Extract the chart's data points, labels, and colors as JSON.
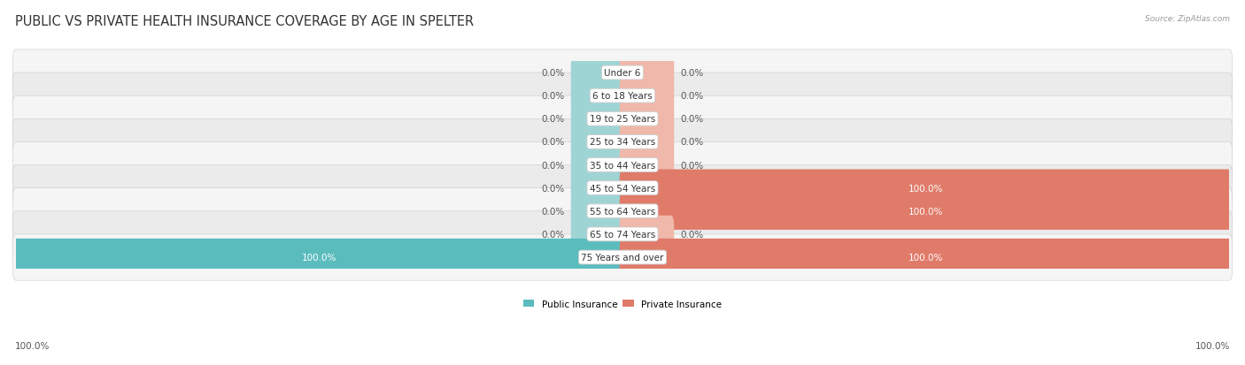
{
  "title": "PUBLIC VS PRIVATE HEALTH INSURANCE COVERAGE BY AGE IN SPELTER",
  "source": "Source: ZipAtlas.com",
  "categories": [
    "Under 6",
    "6 to 18 Years",
    "19 to 25 Years",
    "25 to 34 Years",
    "35 to 44 Years",
    "45 to 54 Years",
    "55 to 64 Years",
    "65 to 74 Years",
    "75 Years and over"
  ],
  "public_values": [
    0.0,
    0.0,
    0.0,
    0.0,
    0.0,
    0.0,
    0.0,
    0.0,
    100.0
  ],
  "private_values": [
    0.0,
    0.0,
    0.0,
    0.0,
    0.0,
    100.0,
    100.0,
    0.0,
    100.0
  ],
  "public_color": "#5bbcbd",
  "private_color": "#e07b6a",
  "public_color_light": "#9fd4d5",
  "private_color_light": "#f0b8aa",
  "row_bg_color_odd": "#f5f5f5",
  "row_bg_color_even": "#ebebeb",
  "bar_height": 0.62,
  "min_bar_width": 8,
  "title_fontsize": 10.5,
  "label_fontsize": 7.5,
  "category_fontsize": 7.5,
  "figure_bg": "#ffffff",
  "text_color": "#555555",
  "white": "#ffffff",
  "legend_public": "Public Insurance",
  "legend_private": "Private Insurance"
}
